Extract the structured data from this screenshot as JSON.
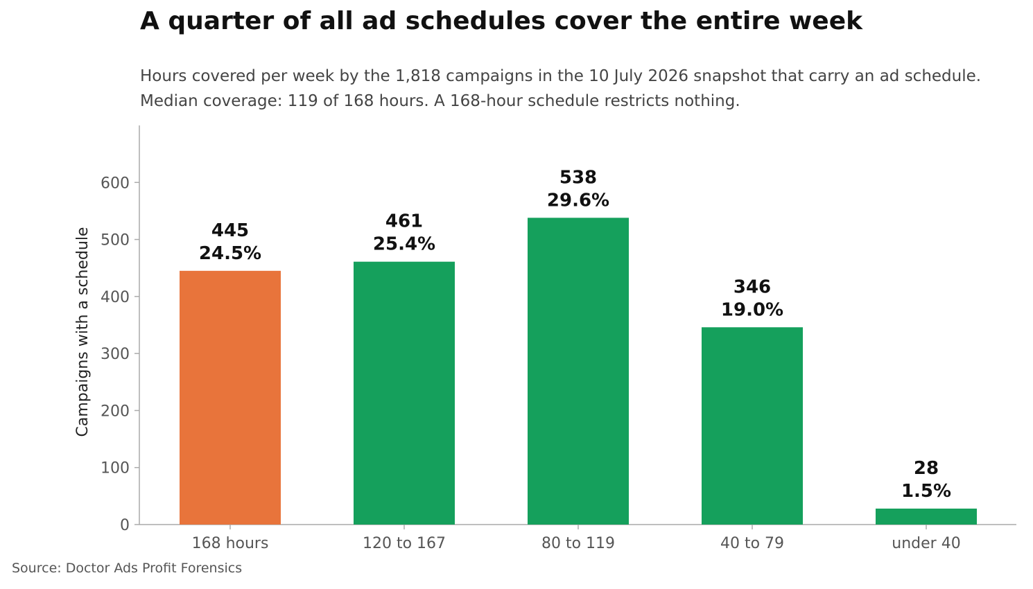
{
  "title": "A quarter of all ad schedules cover the entire week",
  "subtitle_lines": [
    "Hours covered per week by the 1,818 campaigns in the 10 July 2026 snapshot that carry an ad schedule.",
    "Median coverage: 119 of 168 hours. A 168-hour schedule restricts nothing."
  ],
  "source": "Source: Doctor Ads Profit Forensics",
  "colors": {
    "highlight": "#E8743B",
    "default": "#15A05C",
    "axis": "#AAAAAA",
    "tick_text": "#555555"
  },
  "chart_data": {
    "type": "bar",
    "title": "A quarter of all ad schedules cover the entire week",
    "xlabel": "",
    "ylabel": "Campaigns with a schedule",
    "categories": [
      "168 hours",
      "120 to 167",
      "80 to 119",
      "40 to 79",
      "under 40"
    ],
    "values": [
      445,
      461,
      538,
      346,
      28
    ],
    "percent_labels": [
      "24.5%",
      "25.4%",
      "29.6%",
      "19.0%",
      "1.5%"
    ],
    "highlight_categories": [
      "168 hours"
    ],
    "ylim": [
      0,
      700
    ],
    "yticks": [
      0,
      100,
      200,
      300,
      400,
      500,
      600
    ],
    "grid": false,
    "legend": "none"
  }
}
